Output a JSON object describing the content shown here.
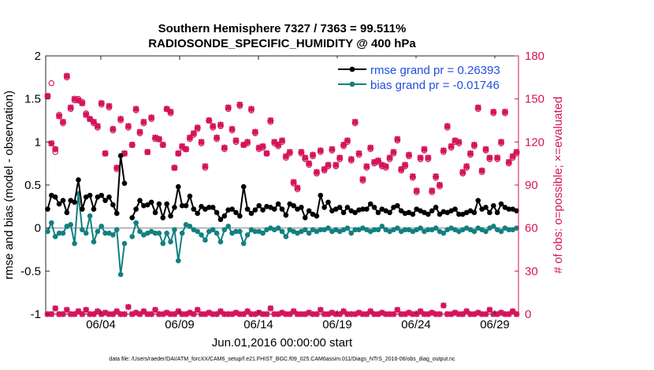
{
  "chart_data": {
    "type": "line",
    "title_line1": "Southern Hemisphere 7327 / 7363 = 99.511%",
    "title_line2": "RADIOSONDE_SPECIFIC_HUMIDITY @ 400 hPa",
    "ylabel_left": "rmse and bias (model - observation)",
    "ylabel_right": "# of obs: o=possible; ×=evaluated",
    "xlabel": "Jun.01,2016 00:00:00 start",
    "footer": "data file: /Users/raeder/DAI/ATM_forcXX/CAM6_setup/f.e21.FHIST_BGC.f09_025.CAM6assim.011/Diags_NTrS_2016-06/obs_diag_output.nc",
    "xlim": [
      1,
      31
    ],
    "ylim_left": [
      -1,
      2
    ],
    "ylim_right": [
      0,
      180
    ],
    "xticks": [
      {
        "value": 4.5,
        "label": "06/04"
      },
      {
        "value": 9.5,
        "label": "06/09"
      },
      {
        "value": 14.5,
        "label": "06/14"
      },
      {
        "value": 19.5,
        "label": "06/19"
      },
      {
        "value": 24.5,
        "label": "06/24"
      },
      {
        "value": 29.5,
        "label": "06/29"
      }
    ],
    "yticks_left": [
      "-1",
      "-0.5",
      "0",
      "0.5",
      "1",
      "1.5",
      "2"
    ],
    "yticks_right": [
      "0",
      "30",
      "60",
      "90",
      "120",
      "150",
      "180"
    ],
    "colors": {
      "rmse": "#000000",
      "bias": "#118080",
      "obs": "#d4145a",
      "zero": "#b4b4b4",
      "legend_text": "#1f4fe0"
    },
    "series": [
      {
        "name": "rmse grand pr = 0.26393",
        "key": "rmse",
        "values": [
          0.22,
          0.38,
          0.36,
          0.28,
          0.32,
          0.18,
          0.32,
          0.3,
          0.56,
          0.22,
          0.36,
          0.38,
          0.22,
          0.36,
          0.38,
          0.32,
          0.36,
          0.27,
          0.17,
          0.84,
          0.52,
          null,
          0.12,
          0.22,
          0.32,
          0.26,
          0.27,
          0.3,
          0.18,
          0.28,
          0.12,
          0.28,
          0.14,
          0.24,
          0.48,
          0.26,
          0.26,
          0.37,
          0.22,
          0.17,
          0.25,
          0.22,
          0.24,
          0.24,
          0.18,
          0.1,
          0.14,
          0.21,
          0.22,
          0.18,
          0.14,
          0.48,
          0.22,
          0.17,
          0.21,
          0.26,
          0.21,
          0.25,
          0.24,
          0.22,
          0.28,
          0.22,
          0.15,
          0.28,
          0.26,
          0.22,
          0.24,
          0.12,
          0.2,
          0.16,
          0.14,
          0.38,
          0.24,
          0.3,
          0.2,
          0.22,
          0.24,
          0.18,
          0.24,
          0.2,
          0.18,
          0.21,
          0.22,
          0.22,
          0.28,
          0.24,
          0.18,
          0.22,
          0.2,
          0.18,
          0.24,
          0.26,
          0.2,
          0.17,
          0.18,
          0.16,
          0.22,
          0.2,
          0.18,
          0.16,
          0.2,
          0.24,
          0.16,
          0.19,
          0.18,
          0.2,
          0.22,
          0.16,
          0.16,
          0.18,
          0.2,
          0.18,
          0.32,
          0.22,
          0.24,
          0.18,
          0.26,
          0.18,
          0.28,
          0.24,
          0.22,
          0.22,
          0.2
        ]
      },
      {
        "name": "bias grand pr = -0.01746",
        "key": "bias",
        "values": [
          -0.04,
          0.06,
          -0.1,
          -0.06,
          -0.06,
          0.02,
          0.04,
          -0.18,
          0.4,
          -0.02,
          -0.06,
          0.14,
          -0.16,
          -0.04,
          0.02,
          -0.06,
          -0.06,
          -0.08,
          -0.02,
          -0.54,
          -0.18,
          null,
          -0.1,
          0.06,
          -0.04,
          -0.08,
          -0.06,
          -0.04,
          -0.06,
          -0.06,
          -0.18,
          -0.06,
          -0.16,
          -0.02,
          -0.38,
          -0.06,
          0.04,
          0.02,
          -0.02,
          -0.04,
          -0.08,
          -0.14,
          -0.04,
          -0.02,
          -0.06,
          -0.16,
          -0.02,
          0.02,
          -0.06,
          -0.04,
          -0.04,
          -0.18,
          -0.08,
          -0.02,
          -0.04,
          -0.04,
          -0.06,
          -0.02,
          0.0,
          -0.02,
          0.0,
          -0.04,
          -0.1,
          -0.02,
          -0.04,
          -0.06,
          -0.04,
          -0.02,
          -0.06,
          -0.02,
          -0.04,
          -0.02,
          -0.02,
          0.0,
          -0.04,
          -0.02,
          -0.04,
          -0.02,
          0.0,
          -0.06,
          -0.02,
          -0.02,
          0.0,
          -0.02,
          -0.04,
          -0.02,
          -0.02,
          0.02,
          -0.02,
          -0.04,
          -0.02,
          0.0,
          -0.04,
          -0.02,
          -0.02,
          -0.04,
          -0.02,
          0.0,
          -0.04,
          -0.02,
          -0.02,
          0.0,
          -0.04,
          -0.06,
          -0.02,
          0.0,
          -0.02,
          -0.04,
          -0.02,
          0.0,
          -0.02,
          -0.04,
          0.0,
          -0.02,
          -0.04,
          0.0,
          0.02,
          -0.02,
          -0.04,
          0.0,
          -0.02,
          -0.02,
          0.0
        ]
      }
    ],
    "obs_possible": [
      152,
      161,
      113,
      139,
      133,
      165,
      143,
      149,
      150,
      148,
      140,
      136,
      133,
      130,
      146,
      112,
      144,
      128,
      101,
      135,
      112,
      130,
      118,
      142,
      126,
      133,
      113,
      136,
      122,
      122,
      118,
      143,
      140,
      102,
      112,
      116,
      115,
      122,
      125,
      129,
      119,
      102,
      135,
      130,
      122,
      131,
      115,
      143,
      128,
      120,
      145,
      118,
      119,
      142,
      126,
      115,
      116,
      112,
      134,
      119,
      117,
      120,
      109,
      112,
      91,
      87,
      112,
      108,
      104,
      110,
      98,
      113,
      100,
      103,
      114,
      103,
      108,
      117,
      120,
      107,
      133,
      111,
      93,
      102,
      115,
      105,
      106,
      103,
      102,
      108,
      112,
      121,
      100,
      103,
      110,
      95,
      85,
      108,
      114,
      108,
      85,
      95,
      89,
      113,
      130,
      116,
      120,
      119,
      98,
      102,
      111,
      117,
      143,
      99,
      114,
      108,
      140,
      108,
      119,
      140,
      105,
      109,
      112
    ],
    "obs_evaluated": [
      152,
      119,
      115,
      138,
      134,
      166,
      144,
      150,
      149,
      147,
      139,
      136,
      134,
      131,
      147,
      112,
      145,
      129,
      102,
      136,
      112,
      131,
      118,
      143,
      127,
      134,
      113,
      137,
      123,
      122,
      118,
      143,
      141,
      102,
      112,
      117,
      115,
      123,
      126,
      130,
      120,
      103,
      135,
      131,
      123,
      132,
      116,
      144,
      129,
      121,
      146,
      118,
      120,
      143,
      127,
      116,
      117,
      112,
      135,
      120,
      118,
      121,
      110,
      113,
      92,
      88,
      113,
      109,
      105,
      111,
      99,
      114,
      101,
      104,
      115,
      104,
      109,
      118,
      121,
      108,
      134,
      112,
      94,
      103,
      116,
      106,
      107,
      104,
      103,
      109,
      113,
      122,
      101,
      104,
      111,
      96,
      86,
      109,
      115,
      109,
      86,
      96,
      90,
      114,
      131,
      117,
      121,
      120,
      99,
      103,
      112,
      118,
      144,
      100,
      115,
      109,
      141,
      109,
      120,
      141,
      106,
      110,
      113
    ],
    "obs_low": [
      0,
      0,
      4,
      0,
      0,
      3,
      0,
      0,
      2,
      0,
      3,
      0,
      0,
      2,
      0,
      1,
      0,
      0,
      2,
      0,
      0,
      5,
      0,
      1,
      0,
      2,
      0,
      0,
      3,
      0,
      0,
      1,
      0,
      0,
      2,
      0,
      0,
      1,
      0,
      3,
      0,
      0,
      1,
      0,
      0,
      2,
      0,
      0,
      0,
      1,
      0,
      0,
      2,
      0,
      0,
      1,
      0,
      0,
      4,
      0,
      0,
      1,
      0,
      0,
      2,
      0,
      0,
      0,
      1,
      0,
      0,
      3,
      0,
      0,
      1,
      0,
      0,
      2,
      0,
      0,
      0,
      1,
      0,
      0,
      2,
      0,
      0,
      1,
      0,
      0,
      0,
      3,
      0,
      0,
      1,
      0,
      0,
      2,
      0,
      0,
      1,
      0,
      0,
      6,
      0,
      0,
      1,
      0,
      0,
      2,
      0,
      0,
      1,
      0,
      0,
      3,
      0,
      0,
      1,
      0,
      0,
      2,
      0
    ]
  },
  "legend": {
    "rmse_label": "rmse grand pr = 0.26393",
    "bias_label": "bias grand pr = -0.01746"
  }
}
